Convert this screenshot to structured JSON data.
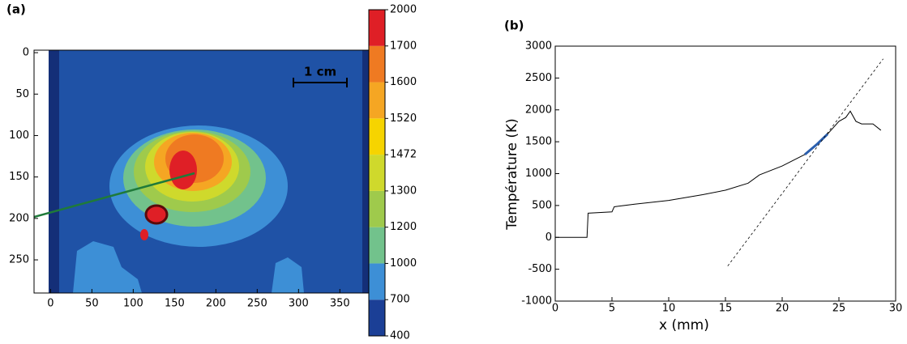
{
  "chart_data": [
    {
      "type": "image",
      "panel_label": "(a)",
      "annotation": "1 cm",
      "xlim": [
        -20,
        385
      ],
      "ylim": [
        -3,
        290
      ],
      "y_inverted": true,
      "xticks": [
        0,
        50,
        100,
        150,
        200,
        250,
        300,
        350
      ],
      "yticks": [
        0,
        50,
        100,
        150,
        200,
        250
      ],
      "colorbar": {
        "levels": [
          400,
          700,
          1000,
          1200,
          1300,
          1472,
          1520,
          1600,
          1700,
          2000
        ],
        "colors": [
          "#1b3f96",
          "#3d8fd6",
          "#72c28c",
          "#9fca4c",
          "#cfd92c",
          "#f6d400",
          "#f5a623",
          "#ef7a22",
          "#df1f26"
        ]
      }
    },
    {
      "type": "line",
      "panel_label": "(b)",
      "xlabel": "x (mm)",
      "ylabel": "Température (K)",
      "xlim": [
        0,
        30
      ],
      "ylim": [
        -1000,
        3000
      ],
      "xticks": [
        0,
        5,
        10,
        15,
        20,
        25,
        30
      ],
      "yticks": [
        -1000,
        -500,
        0,
        500,
        1000,
        1500,
        2000,
        2500,
        3000
      ],
      "series": [
        {
          "color": "#000000",
          "style": "solid",
          "width": 1,
          "x": [
            0,
            2.8,
            2.9,
            5,
            5.2,
            7,
            10,
            13,
            15,
            17,
            18,
            20,
            22,
            23,
            24,
            25,
            25.6,
            26,
            26.5,
            27,
            28,
            28.7
          ],
          "values": [
            0,
            0,
            380,
            400,
            480,
            520,
            580,
            670,
            740,
            850,
            980,
            1120,
            1300,
            1450,
            1620,
            1820,
            1880,
            1980,
            1820,
            1780,
            1780,
            1680
          ]
        },
        {
          "color": "#2b5fae",
          "style": "solid",
          "width": 3,
          "x": [
            22,
            23,
            24
          ],
          "values": [
            1300,
            1450,
            1620
          ]
        },
        {
          "color": "#000000",
          "style": "dashed",
          "width": 0.8,
          "x": [
            15.2,
            28.9
          ],
          "values": [
            -450,
            2800
          ]
        }
      ]
    }
  ]
}
